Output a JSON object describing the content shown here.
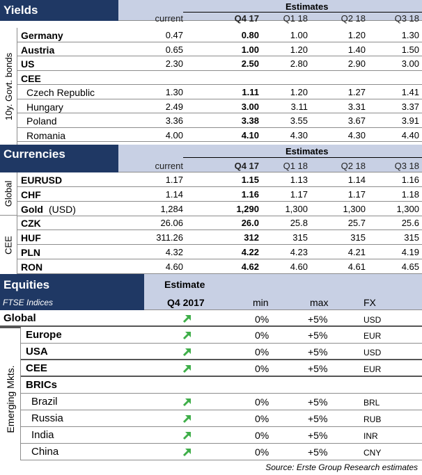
{
  "yields": {
    "title": "Yields",
    "estimates_label": "Estimates",
    "columns": [
      "current",
      "Q4 17",
      "Q1 18",
      "Q2 18",
      "Q3 18"
    ],
    "side_label": "10y. Govt. bonds",
    "rows": [
      {
        "label": "Germany",
        "values": [
          "0.47",
          "0.80",
          "1.00",
          "1.20",
          "1.30"
        ]
      },
      {
        "label": "Austria",
        "values": [
          "0.65",
          "1.00",
          "1.20",
          "1.40",
          "1.50"
        ]
      },
      {
        "label": "US",
        "values": [
          "2.30",
          "2.50",
          "2.80",
          "2.90",
          "3.00"
        ]
      }
    ],
    "cee_label": "CEE",
    "cee_rows": [
      {
        "label": "Czech Republic",
        "values": [
          "1.30",
          "1.11",
          "1.20",
          "1.27",
          "1.41"
        ]
      },
      {
        "label": "Hungary",
        "values": [
          "2.49",
          "3.00",
          "3.11",
          "3.31",
          "3.37"
        ]
      },
      {
        "label": "Poland",
        "values": [
          "3.36",
          "3.38",
          "3.55",
          "3.67",
          "3.91"
        ]
      },
      {
        "label": "Romania",
        "values": [
          "4.00",
          "4.10",
          "4.30",
          "4.30",
          "4.40"
        ]
      }
    ]
  },
  "currencies": {
    "title": "Currencies",
    "estimates_label": "Estimates",
    "columns": [
      "current",
      "Q4 17",
      "Q1 18",
      "Q2 18",
      "Q3 18"
    ],
    "global_label": "Global",
    "global_rows": [
      {
        "label": "EURUSD",
        "values": [
          "1.17",
          "1.15",
          "1.13",
          "1.14",
          "1.16"
        ]
      },
      {
        "label": "CHF",
        "values": [
          "1.14",
          "1.16",
          "1.17",
          "1.17",
          "1.18"
        ]
      },
      {
        "label": "Gold",
        "label_suffix": " (USD)",
        "values": [
          "1,284",
          "1,290",
          "1,300",
          "1,300",
          "1,300"
        ]
      }
    ],
    "cee_label": "CEE",
    "cee_rows": [
      {
        "label": "CZK",
        "values": [
          "26.06",
          "26.0",
          "25.8",
          "25.7",
          "25.6"
        ]
      },
      {
        "label": "HUF",
        "values": [
          "311.26",
          "312",
          "315",
          "315",
          "315"
        ]
      },
      {
        "label": "PLN",
        "values": [
          "4.32",
          "4.22",
          "4.23",
          "4.21",
          "4.19"
        ]
      },
      {
        "label": "RON",
        "values": [
          "4.60",
          "4.62",
          "4.60",
          "4.61",
          "4.65"
        ]
      }
    ]
  },
  "equities": {
    "title": "Equities",
    "subtitle": "FTSE Indices",
    "estimate_label": "Estimate",
    "period_label": "Q4 2017",
    "columns": [
      "min",
      "max",
      "FX"
    ],
    "global_label": "Global",
    "side_label": "Emerging Mkts.",
    "up_arrow_icon": "up-right-arrow-icon",
    "arrow_color": "#3fae49",
    "rows": [
      {
        "label": "Europe",
        "min": "0%",
        "max": "+5%",
        "fx": "EUR"
      },
      {
        "label": "USA",
        "min": "0%",
        "max": "+5%",
        "fx": "USD"
      },
      {
        "label": "CEE",
        "min": "0%",
        "max": "+5%",
        "fx": "EUR"
      }
    ],
    "global_row": {
      "min": "0%",
      "max": "+5%",
      "fx": "USD"
    },
    "brics_label": "BRICs",
    "brics_rows": [
      {
        "label": "Brazil",
        "min": "0%",
        "max": "+5%",
        "fx": "BRL"
      },
      {
        "label": "Russia",
        "min": "0%",
        "max": "+5%",
        "fx": "RUB"
      },
      {
        "label": "India",
        "min": "0%",
        "max": "+5%",
        "fx": "INR"
      },
      {
        "label": "China",
        "min": "0%",
        "max": "+5%",
        "fx": "CNY"
      }
    ]
  },
  "source": "Source: Erste Group Research estimates",
  "colors": {
    "navy": "#1f3864",
    "light_blue": "#c8d0e4",
    "arrow_green": "#3fae49"
  }
}
